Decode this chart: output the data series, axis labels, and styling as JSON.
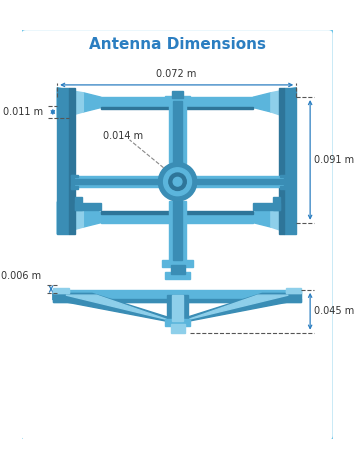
{
  "title": "Antenna Dimensions",
  "title_color": "#2B7EC1",
  "title_fontsize": 11,
  "bg_color": "#FFFFFF",
  "border_color": "#6CC5E8",
  "lc": "#8ECFEA",
  "mc": "#5BB5DC",
  "dc": "#3A8DB5",
  "ddc": "#2E7599",
  "dim_color": "#333333",
  "arr_color": "#2B7EC1",
  "dimensions": {
    "width_top": "0.072 m",
    "height_left_top": "0.011 m",
    "center_dia": "0.014 m",
    "height_right": "0.091 m",
    "height_bottom_gap": "0.006 m",
    "height_base": "0.045 m"
  }
}
